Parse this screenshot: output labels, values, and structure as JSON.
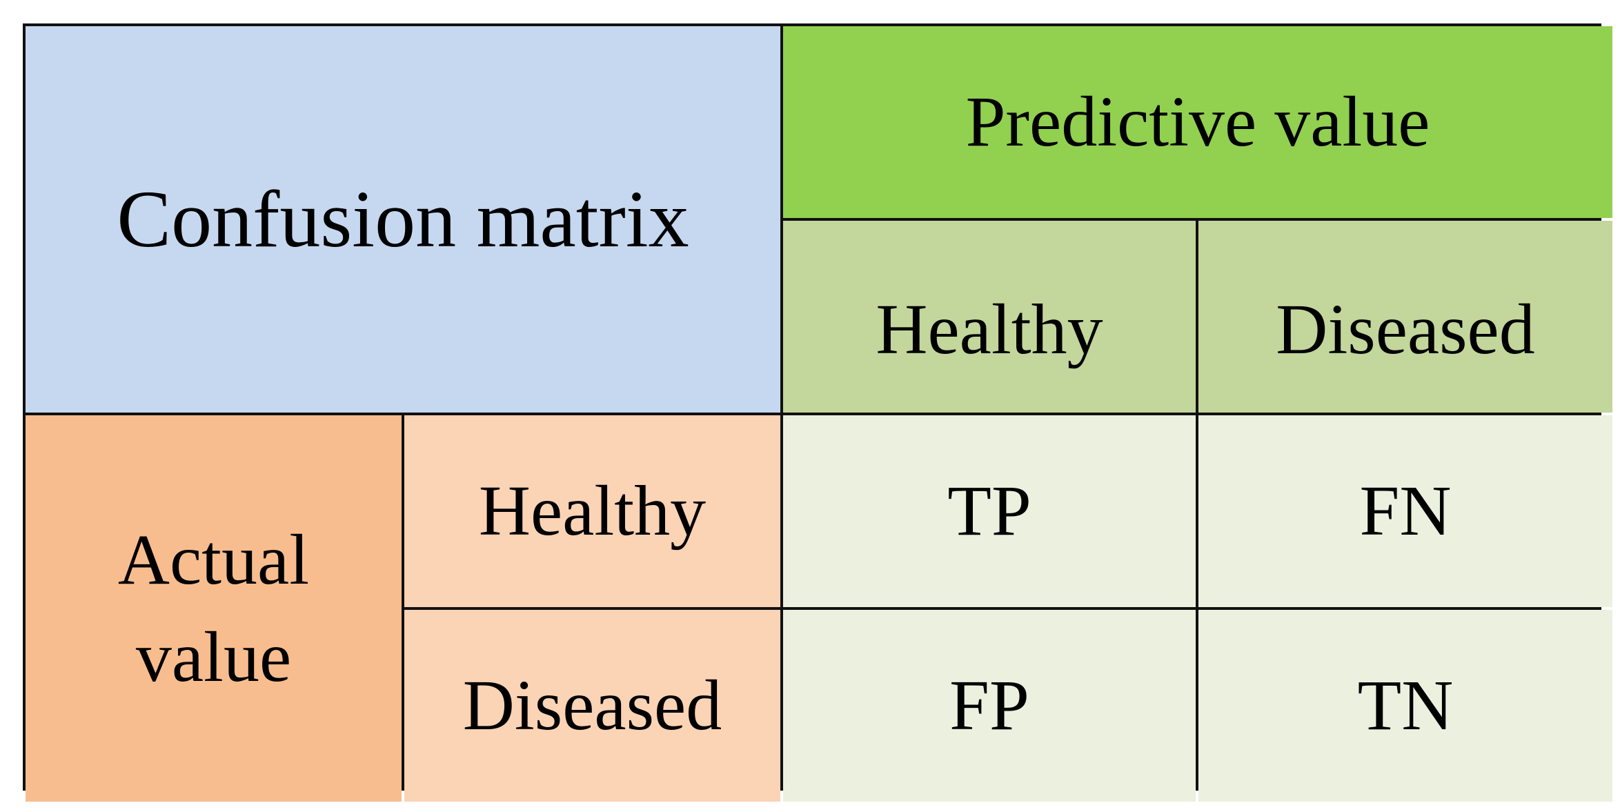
{
  "colors": {
    "corner_bg": "#c6d8f0",
    "predicted_header_bg": "#92d050",
    "predicted_sub_bg": "#c3d69b",
    "actual_header_bg": "#f8bd8f",
    "actual_sub_bg": "#fbd3b5",
    "value_bg": "#ebf1de",
    "border": "#111111"
  },
  "matrix": {
    "corner_label": "Confusion matrix",
    "predicted": {
      "header": "Predictive value",
      "classes": [
        "Healthy",
        "Diseased"
      ]
    },
    "actual": {
      "header_line1": "Actual",
      "header_line2": "value",
      "classes": [
        "Healthy",
        "Diseased"
      ]
    },
    "cells": [
      [
        "TP",
        "FN"
      ],
      [
        "FP",
        "TN"
      ]
    ]
  }
}
